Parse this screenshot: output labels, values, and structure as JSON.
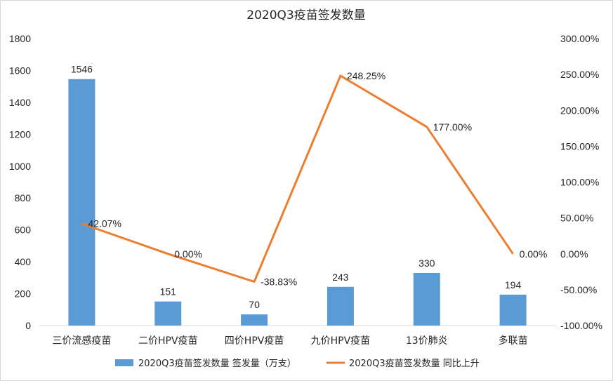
{
  "chart_data": {
    "type": "bar",
    "title": "2020Q3疫苗签发数量",
    "categories": [
      "三价流感疫苗",
      "二价HPV疫苗",
      "四价HPV疫苗",
      "九价HPV疫苗",
      "13价肺炎",
      "多联苗"
    ],
    "series": [
      {
        "name": "2020Q3疫苗签发数量 签发量（万支）",
        "type": "bar",
        "axis": "left",
        "color": "#5b9bd5",
        "values": [
          1546,
          151,
          70,
          243,
          330,
          194
        ],
        "labels": [
          "1546",
          "151",
          "70",
          "243",
          "330",
          "194"
        ]
      },
      {
        "name": "2020Q3疫苗签发数量 同比上升",
        "type": "line",
        "axis": "right",
        "color": "#ed7d31",
        "values": [
          42.07,
          0.0,
          -38.83,
          248.25,
          177.0,
          0.0
        ],
        "labels": [
          "42.07%",
          "0.00%",
          "-38.83%",
          "248.25%",
          "177.00%",
          "0.00%"
        ]
      }
    ],
    "left_axis": {
      "ylim": [
        0,
        1800
      ],
      "ticks": [
        "0",
        "200",
        "400",
        "600",
        "800",
        "1000",
        "1200",
        "1400",
        "1600",
        "1800"
      ]
    },
    "right_axis": {
      "ylim": [
        -100,
        300
      ],
      "ticks": [
        "-100.00%",
        "-50.00%",
        "0.00%",
        "50.00%",
        "100.00%",
        "150.00%",
        "200.00%",
        "250.00%",
        "300.00%"
      ]
    },
    "grid": false,
    "legend": "bottom"
  }
}
